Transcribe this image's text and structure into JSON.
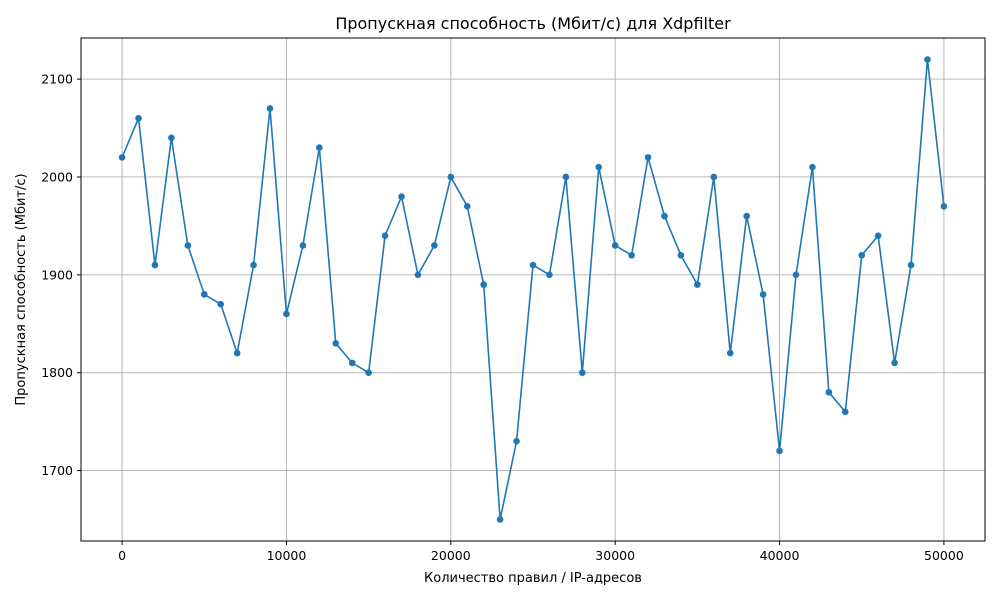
{
  "chart_data": {
    "type": "line",
    "title": "Пропускная способность (Мбит/с) для Xdpfilter",
    "xlabel": "Количество правил / IP-адресов",
    "ylabel": "Пропускная способность (Мбит/с)",
    "xlim": [
      -2500,
      52500
    ],
    "ylim": [
      1628,
      2142
    ],
    "xticks": [
      0,
      10000,
      20000,
      30000,
      40000,
      50000
    ],
    "yticks": [
      1700,
      1800,
      1900,
      2000,
      2100
    ],
    "grid": true,
    "series": [
      {
        "name": "Xdpfilter",
        "color": "#1f77b4",
        "marker": "circle",
        "x": [
          0,
          1000,
          2000,
          3000,
          4000,
          5000,
          6000,
          7000,
          8000,
          9000,
          10000,
          11000,
          12000,
          13000,
          14000,
          15000,
          16000,
          17000,
          18000,
          19000,
          20000,
          21000,
          22000,
          23000,
          24000,
          25000,
          26000,
          27000,
          28000,
          29000,
          30000,
          31000,
          32000,
          33000,
          34000,
          35000,
          36000,
          37000,
          38000,
          39000,
          40000,
          41000,
          42000,
          43000,
          44000,
          45000,
          46000,
          47000,
          48000,
          49000,
          50000
        ],
        "values": [
          2020,
          2060,
          1910,
          2040,
          1930,
          1880,
          1870,
          1820,
          1910,
          2070,
          1860,
          1930,
          2030,
          1830,
          1810,
          1800,
          1940,
          1980,
          1900,
          1930,
          2000,
          1970,
          1890,
          1650,
          1730,
          1910,
          1900,
          2000,
          1800,
          2010,
          1930,
          1920,
          2020,
          1960,
          1920,
          1890,
          2000,
          1820,
          1960,
          1880,
          1720,
          1900,
          2010,
          1780,
          1760,
          1920,
          1940,
          1810,
          1910,
          2120,
          1970
        ]
      }
    ]
  }
}
